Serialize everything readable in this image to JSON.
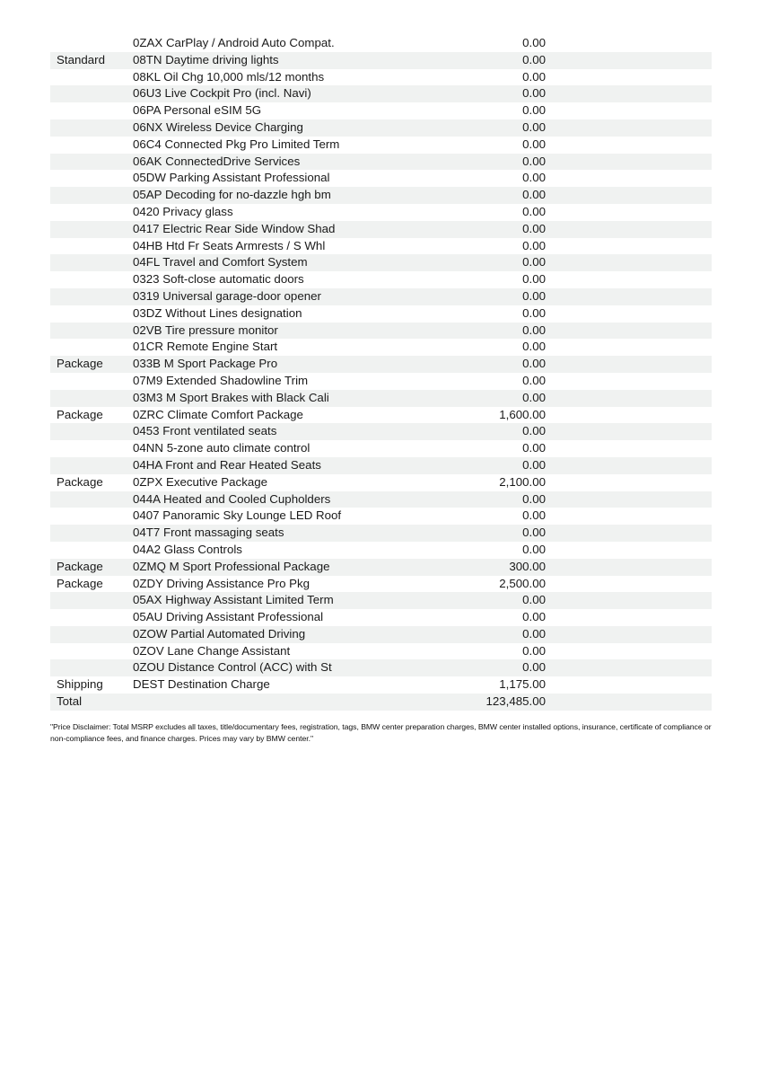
{
  "colors": {
    "row_stripe": "#f0f2f1",
    "text": "#1a1a1a",
    "background": "#ffffff"
  },
  "table": {
    "rows": [
      {
        "category": "",
        "code": "0ZAX",
        "desc": "CarPlay / Android Auto Compat.",
        "price": "0.00"
      },
      {
        "category": "Standard",
        "code": "08TN",
        "desc": "Daytime driving lights",
        "price": "0.00"
      },
      {
        "category": "",
        "code": "08KL",
        "desc": "Oil Chg 10,000 mls/12 months",
        "price": "0.00"
      },
      {
        "category": "",
        "code": "06U3",
        "desc": "Live Cockpit Pro (incl. Navi)",
        "price": "0.00"
      },
      {
        "category": "",
        "code": "06PA",
        "desc": "Personal eSIM 5G",
        "price": "0.00"
      },
      {
        "category": "",
        "code": "06NX",
        "desc": "Wireless Device Charging",
        "price": "0.00"
      },
      {
        "category": "",
        "code": "06C4",
        "desc": "Connected Pkg Pro Limited Term",
        "price": "0.00"
      },
      {
        "category": "",
        "code": "06AK",
        "desc": "ConnectedDrive Services",
        "price": "0.00"
      },
      {
        "category": "",
        "code": "05DW",
        "desc": "Parking Assistant Professional",
        "price": "0.00"
      },
      {
        "category": "",
        "code": "05AP",
        "desc": "Decoding for no-dazzle hgh bm",
        "price": "0.00"
      },
      {
        "category": "",
        "code": "0420",
        "desc": "Privacy glass",
        "price": "0.00"
      },
      {
        "category": "",
        "code": "0417",
        "desc": "Electric Rear Side Window Shad",
        "price": "0.00"
      },
      {
        "category": "",
        "code": "04HB",
        "desc": "Htd Fr Seats Armrests / S Whl",
        "price": "0.00"
      },
      {
        "category": "",
        "code": "04FL",
        "desc": "Travel and Comfort System",
        "price": "0.00"
      },
      {
        "category": "",
        "code": "0323",
        "desc": "Soft-close automatic doors",
        "price": "0.00"
      },
      {
        "category": "",
        "code": "0319",
        "desc": "Universal garage-door opener",
        "price": "0.00"
      },
      {
        "category": "",
        "code": "03DZ",
        "desc": "Without Lines designation",
        "price": "0.00"
      },
      {
        "category": "",
        "code": "02VB",
        "desc": "Tire pressure monitor",
        "price": "0.00"
      },
      {
        "category": "",
        "code": "01CR",
        "desc": "Remote Engine Start",
        "price": "0.00"
      },
      {
        "category": "Package",
        "code": "033B",
        "desc": "M Sport Package Pro",
        "price": "0.00"
      },
      {
        "category": "",
        "code": "07M9",
        "desc": "Extended Shadowline Trim",
        "price": "0.00"
      },
      {
        "category": "",
        "code": "03M3",
        "desc": "M Sport Brakes with Black Cali",
        "price": "0.00"
      },
      {
        "category": "Package",
        "code": "0ZRC",
        "desc": "Climate Comfort Package",
        "price": "1,600.00"
      },
      {
        "category": "",
        "code": "0453",
        "desc": "Front ventilated seats",
        "price": "0.00"
      },
      {
        "category": "",
        "code": "04NN",
        "desc": "5-zone auto climate control",
        "price": "0.00"
      },
      {
        "category": "",
        "code": "04HA",
        "desc": "Front and Rear Heated Seats",
        "price": "0.00"
      },
      {
        "category": "Package",
        "code": "0ZPX",
        "desc": "Executive Package",
        "price": "2,100.00"
      },
      {
        "category": "",
        "code": "044A",
        "desc": "Heated and Cooled Cupholders",
        "price": "0.00"
      },
      {
        "category": "",
        "code": "0407",
        "desc": "Panoramic Sky Lounge LED Roof",
        "price": "0.00"
      },
      {
        "category": "",
        "code": "04T7",
        "desc": "Front massaging seats",
        "price": "0.00"
      },
      {
        "category": "",
        "code": "04A2",
        "desc": "Glass Controls",
        "price": "0.00"
      },
      {
        "category": "Package",
        "code": "0ZMQ",
        "desc": "M Sport Professional Package",
        "price": "300.00"
      },
      {
        "category": "Package",
        "code": "0ZDY",
        "desc": "Driving Assistance Pro Pkg",
        "price": "2,500.00"
      },
      {
        "category": "",
        "code": "05AX",
        "desc": "Highway Assistant Limited Term",
        "price": "0.00"
      },
      {
        "category": "",
        "code": "05AU",
        "desc": "Driving Assistant Professional",
        "price": "0.00"
      },
      {
        "category": "",
        "code": "0ZOW",
        "desc": "Partial Automated Driving",
        "price": "0.00"
      },
      {
        "category": "",
        "code": "0ZOV",
        "desc": "Lane Change Assistant",
        "price": "0.00"
      },
      {
        "category": "",
        "code": "0ZOU",
        "desc": "Distance Control (ACC) with St",
        "price": "0.00"
      },
      {
        "category": "Shipping",
        "code": "DEST",
        "desc": "Destination Charge",
        "price": "1,175.00"
      },
      {
        "category": "Total",
        "code": "",
        "desc": "",
        "price": "123,485.00"
      }
    ]
  },
  "disclaimer": "\"Price Disclaimer: Total MSRP excludes all taxes, title/documentary fees, registration, tags, BMW center preparation charges, BMW center installed options, insurance, certificate of compliance or non-compliance fees, and finance charges. Prices may vary by BMW center.\""
}
